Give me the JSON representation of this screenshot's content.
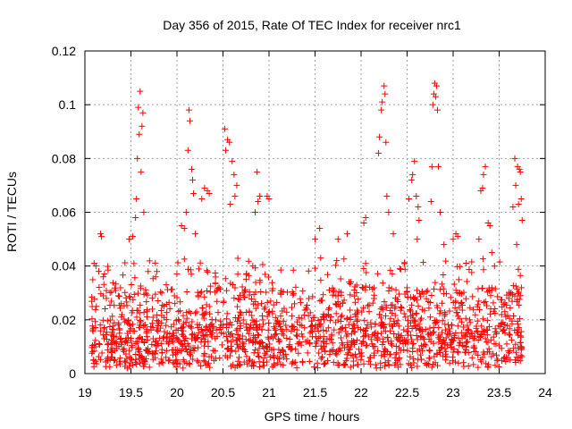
{
  "chart_data": {
    "type": "scatter",
    "title": "Day 356 of 2015, Rate Of TEC Index for receiver nrc1",
    "xlabel": "GPS time / hours",
    "ylabel": "ROTI / TECUs",
    "xlim": [
      19,
      24
    ],
    "ylim": [
      0,
      0.12
    ],
    "xticks": [
      "19",
      "19.5",
      "20",
      "20.5",
      "21",
      "21.5",
      "22",
      "22.5",
      "23",
      "23.5",
      "24"
    ],
    "yticks": [
      "0",
      "0.02",
      "0.04",
      "0.06",
      "0.08",
      "0.1",
      "0.12"
    ],
    "grid": true,
    "marker": "plus",
    "color": "#ff0000",
    "data_extent_hours": [
      19.07,
      23.75
    ],
    "series": [
      {
        "name": "ROTI",
        "points": [
          [
            19.6,
            0.105
          ],
          [
            19.58,
            0.099
          ],
          [
            19.63,
            0.097
          ],
          [
            19.59,
            0.089
          ],
          [
            19.62,
            0.092
          ],
          [
            19.57,
            0.08
          ],
          [
            19.61,
            0.075
          ],
          [
            19.56,
            0.065
          ],
          [
            19.64,
            0.06
          ],
          [
            19.55,
            0.058
          ],
          [
            19.52,
            0.051
          ],
          [
            19.48,
            0.05
          ],
          [
            19.17,
            0.052
          ],
          [
            19.18,
            0.051
          ],
          [
            19.1,
            0.041
          ],
          [
            19.12,
            0.04
          ],
          [
            19.15,
            0.038
          ],
          [
            19.2,
            0.036
          ],
          [
            20.13,
            0.098
          ],
          [
            20.14,
            0.094
          ],
          [
            20.12,
            0.083
          ],
          [
            20.16,
            0.076
          ],
          [
            20.17,
            0.072
          ],
          [
            20.18,
            0.067
          ],
          [
            20.1,
            0.06
          ],
          [
            20.05,
            0.055
          ],
          [
            20.08,
            0.054
          ],
          [
            20.2,
            0.052
          ],
          [
            20.3,
            0.069
          ],
          [
            20.33,
            0.068
          ],
          [
            20.35,
            0.067
          ],
          [
            20.27,
            0.065
          ],
          [
            20.52,
            0.091
          ],
          [
            20.55,
            0.087
          ],
          [
            20.57,
            0.086
          ],
          [
            20.53,
            0.083
          ],
          [
            20.6,
            0.079
          ],
          [
            20.62,
            0.074
          ],
          [
            20.65,
            0.07
          ],
          [
            20.63,
            0.066
          ],
          [
            20.58,
            0.063
          ],
          [
            20.87,
            0.075
          ],
          [
            20.9,
            0.066
          ],
          [
            20.88,
            0.064
          ],
          [
            20.98,
            0.066
          ],
          [
            21.0,
            0.065
          ],
          [
            20.85,
            0.06
          ],
          [
            21.55,
            0.054
          ],
          [
            21.5,
            0.05
          ],
          [
            21.75,
            0.05
          ],
          [
            21.85,
            0.052
          ],
          [
            22.05,
            0.058
          ],
          [
            22.03,
            0.056
          ],
          [
            22.25,
            0.107
          ],
          [
            22.23,
            0.101
          ],
          [
            22.22,
            0.098
          ],
          [
            22.26,
            0.104
          ],
          [
            22.2,
            0.088
          ],
          [
            22.27,
            0.086
          ],
          [
            22.19,
            0.082
          ],
          [
            22.28,
            0.066
          ],
          [
            22.3,
            0.06
          ],
          [
            22.35,
            0.052
          ],
          [
            22.58,
            0.079
          ],
          [
            22.56,
            0.074
          ],
          [
            22.55,
            0.072
          ],
          [
            22.6,
            0.066
          ],
          [
            22.62,
            0.062
          ],
          [
            22.63,
            0.057
          ],
          [
            22.61,
            0.05
          ],
          [
            22.52,
            0.065
          ],
          [
            22.8,
            0.108
          ],
          [
            22.82,
            0.107
          ],
          [
            22.79,
            0.104
          ],
          [
            22.81,
            0.103
          ],
          [
            22.78,
            0.1
          ],
          [
            22.83,
            0.098
          ],
          [
            22.77,
            0.077
          ],
          [
            22.84,
            0.077
          ],
          [
            22.76,
            0.064
          ],
          [
            22.86,
            0.06
          ],
          [
            22.9,
            0.048
          ],
          [
            23.03,
            0.052
          ],
          [
            23.05,
            0.051
          ],
          [
            23.0,
            0.05
          ],
          [
            23.35,
            0.077
          ],
          [
            23.33,
            0.074
          ],
          [
            23.32,
            0.069
          ],
          [
            23.3,
            0.068
          ],
          [
            23.38,
            0.056
          ],
          [
            23.4,
            0.055
          ],
          [
            23.28,
            0.05
          ],
          [
            23.42,
            0.045
          ],
          [
            23.67,
            0.08
          ],
          [
            23.7,
            0.077
          ],
          [
            23.72,
            0.076
          ],
          [
            23.73,
            0.075
          ],
          [
            23.68,
            0.07
          ],
          [
            23.74,
            0.065
          ],
          [
            23.71,
            0.063
          ],
          [
            23.65,
            0.062
          ],
          [
            23.75,
            0.057
          ],
          [
            23.69,
            0.048
          ]
        ],
        "background_density": "dense cluster between 0.002 and 0.045 across 19.07–23.75 h"
      }
    ]
  }
}
